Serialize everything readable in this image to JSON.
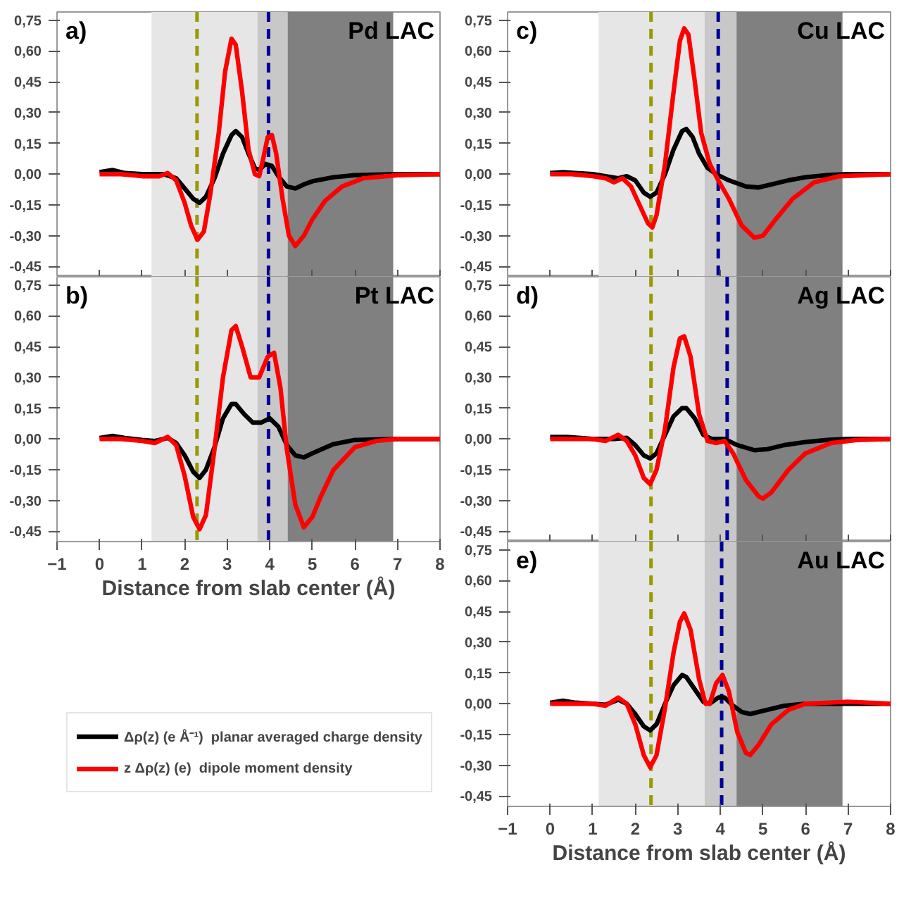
{
  "chart_data": [
    {
      "type": "line",
      "title": "Pd LAC",
      "annotations": [
        "a)"
      ],
      "xlim": [
        -1,
        8
      ],
      "ylim": [
        -0.5,
        0.79
      ],
      "tick_labels": "y",
      "grid": false,
      "xticks": [
        -1,
        0,
        1,
        2,
        3,
        4,
        5,
        6,
        7,
        8
      ],
      "yticks": [
        {
          "value": -0.45,
          "label": "-0,45"
        },
        {
          "value": -0.3,
          "label": "-0,30"
        },
        {
          "value": -0.15,
          "label": "-0,15"
        },
        {
          "value": 0,
          "label": "0,00"
        },
        {
          "value": 0.15,
          "label": "0,15"
        },
        {
          "value": 0.3,
          "label": "0,30"
        },
        {
          "value": 0.45,
          "label": "0,45"
        },
        {
          "value": 0.6,
          "label": "0,60"
        },
        {
          "value": 0.75,
          "label": "0,75"
        }
      ],
      "bands": [
        {
          "axis": "x",
          "from": 1.22,
          "to": 3.71,
          "color": "#e6e6e6"
        },
        {
          "axis": "x",
          "from": 3.71,
          "to": 4.42,
          "color": "#c8c8c8"
        },
        {
          "axis": "x",
          "from": 4.42,
          "to": 6.9,
          "color": "#808080"
        }
      ],
      "ref_lines": [
        {
          "axis": "x",
          "value": 2.29,
          "color": "#999900",
          "line_style": "dashed"
        },
        {
          "axis": "x",
          "value": 3.97,
          "color": "#000099",
          "line_style": "dashed"
        }
      ],
      "series": [
        {
          "color": "#000000",
          "x": [
            0,
            0.3,
            0.6,
            1.0,
            1.5,
            1.8,
            2.0,
            2.2,
            2.35,
            2.5,
            2.7,
            2.9,
            3.1,
            3.2,
            3.35,
            3.5,
            3.65,
            3.75,
            3.9,
            4.05,
            4.2,
            4.4,
            4.6,
            4.8,
            5.0,
            5.5,
            6.0,
            7.0,
            8.0
          ],
          "values": [
            0.01,
            0.02,
            0.005,
            0,
            0,
            -0.02,
            -0.07,
            -0.12,
            -0.14,
            -0.11,
            -0.02,
            0.1,
            0.19,
            0.21,
            0.18,
            0.1,
            0.03,
            0.02,
            0.05,
            0.04,
            -0.01,
            -0.06,
            -0.07,
            -0.05,
            -0.035,
            -0.015,
            -0.005,
            0,
            0
          ]
        },
        {
          "color": "#ff0000",
          "x": [
            0,
            0.5,
            1.0,
            1.4,
            1.6,
            1.8,
            2.0,
            2.15,
            2.3,
            2.45,
            2.6,
            2.8,
            2.95,
            3.1,
            3.2,
            3.35,
            3.5,
            3.65,
            3.75,
            3.85,
            3.95,
            4.05,
            4.15,
            4.3,
            4.45,
            4.6,
            4.8,
            5.0,
            5.3,
            5.7,
            6.2,
            7.0,
            8.0
          ],
          "values": [
            0,
            0,
            -0.01,
            -0.01,
            0.005,
            -0.03,
            -0.14,
            -0.25,
            -0.32,
            -0.28,
            -0.1,
            0.2,
            0.5,
            0.66,
            0.63,
            0.4,
            0.12,
            0,
            -0.01,
            0.08,
            0.18,
            0.19,
            0.1,
            -0.12,
            -0.3,
            -0.35,
            -0.3,
            -0.22,
            -0.13,
            -0.06,
            -0.02,
            -0.005,
            0
          ]
        }
      ]
    },
    {
      "type": "line",
      "title": "Pt LAC",
      "annotations": [
        "b)"
      ],
      "xlabel": "Distance from slab center (Å)",
      "xlim": [
        -1,
        8
      ],
      "ylim": [
        -0.5,
        0.79
      ],
      "grid": false,
      "legend": "bottom",
      "xticks": [
        -1,
        0,
        1,
        2,
        3,
        4,
        5,
        6,
        7,
        8
      ],
      "yticks": [
        {
          "value": -0.45,
          "label": "-0,45"
        },
        {
          "value": -0.3,
          "label": "-0,30"
        },
        {
          "value": -0.15,
          "label": "-0,15"
        },
        {
          "value": 0,
          "label": "0,00"
        },
        {
          "value": 0.15,
          "label": "0,15"
        },
        {
          "value": 0.3,
          "label": "0,30"
        },
        {
          "value": 0.45,
          "label": "0,45"
        },
        {
          "value": 0.6,
          "label": "0,60"
        },
        {
          "value": 0.75,
          "label": "0,75"
        }
      ],
      "bands": [
        {
          "axis": "x",
          "from": 1.22,
          "to": 3.71,
          "color": "#e6e6e6"
        },
        {
          "axis": "x",
          "from": 3.71,
          "to": 4.42,
          "color": "#c8c8c8"
        },
        {
          "axis": "x",
          "from": 4.42,
          "to": 6.9,
          "color": "#808080"
        }
      ],
      "ref_lines": [
        {
          "axis": "x",
          "value": 2.29,
          "color": "#999900",
          "line_style": "dashed"
        },
        {
          "axis": "x",
          "value": 3.97,
          "color": "#000099",
          "line_style": "dashed"
        }
      ],
      "series": [
        {
          "name": "Δρ(z) (e Å⁻¹)  planar averaged charge density",
          "color": "#000000",
          "x": [
            0,
            0.3,
            0.6,
            1.0,
            1.3,
            1.6,
            1.8,
            2.0,
            2.2,
            2.35,
            2.5,
            2.7,
            2.9,
            3.1,
            3.2,
            3.4,
            3.6,
            3.8,
            4.0,
            4.2,
            4.4,
            4.6,
            4.8,
            5.0,
            5.5,
            6.0,
            7.0,
            8.0
          ],
          "values": [
            0.005,
            0.015,
            0.005,
            -0.005,
            -0.01,
            0.005,
            -0.02,
            -0.08,
            -0.16,
            -0.19,
            -0.15,
            -0.04,
            0.1,
            0.17,
            0.17,
            0.12,
            0.08,
            0.08,
            0.1,
            0.06,
            -0.03,
            -0.08,
            -0.09,
            -0.07,
            -0.025,
            -0.005,
            0,
            0
          ]
        },
        {
          "name": "z Δρ(z) (e)  dipole moment density",
          "color": "#ff0000",
          "x": [
            0,
            0.5,
            1.0,
            1.3,
            1.6,
            1.8,
            2.0,
            2.2,
            2.35,
            2.5,
            2.7,
            2.9,
            3.1,
            3.2,
            3.35,
            3.55,
            3.75,
            3.95,
            4.1,
            4.25,
            4.4,
            4.6,
            4.8,
            5.0,
            5.2,
            5.5,
            6.0,
            6.5,
            7.0,
            8.0
          ],
          "values": [
            0,
            0,
            -0.01,
            -0.02,
            0.01,
            -0.03,
            -0.18,
            -0.38,
            -0.44,
            -0.37,
            -0.05,
            0.3,
            0.53,
            0.55,
            0.45,
            0.3,
            0.3,
            0.4,
            0.42,
            0.25,
            -0.05,
            -0.32,
            -0.43,
            -0.38,
            -0.28,
            -0.15,
            -0.04,
            -0.01,
            0,
            0
          ]
        }
      ]
    },
    {
      "type": "line",
      "title": "Cu LAC",
      "annotations": [
        "c)"
      ],
      "xlim": [
        -1,
        8
      ],
      "ylim": [
        -0.5,
        0.79
      ],
      "tick_labels": "y",
      "grid": false,
      "xticks": [
        -1,
        0,
        1,
        2,
        3,
        4,
        5,
        6,
        7,
        8
      ],
      "yticks": [
        {
          "value": -0.45,
          "label": "-0,45"
        },
        {
          "value": -0.3,
          "label": "-0,30"
        },
        {
          "value": -0.15,
          "label": "-0,15"
        },
        {
          "value": 0,
          "label": "0,00"
        },
        {
          "value": 0.15,
          "label": "0,15"
        },
        {
          "value": 0.3,
          "label": "0,30"
        },
        {
          "value": 0.45,
          "label": "0,45"
        },
        {
          "value": 0.6,
          "label": "0,60"
        },
        {
          "value": 0.75,
          "label": "0,75"
        }
      ],
      "bands": [
        {
          "axis": "x",
          "from": 1.14,
          "to": 3.63,
          "color": "#e6e6e6"
        },
        {
          "axis": "x",
          "from": 3.63,
          "to": 4.38,
          "color": "#c8c8c8"
        },
        {
          "axis": "x",
          "from": 4.38,
          "to": 6.87,
          "color": "#808080"
        }
      ],
      "ref_lines": [
        {
          "axis": "x",
          "value": 2.37,
          "color": "#999900",
          "line_style": "dashed"
        },
        {
          "axis": "x",
          "value": 3.95,
          "color": "#000099",
          "line_style": "dashed"
        }
      ],
      "series": [
        {
          "color": "#000000",
          "x": [
            0,
            0.3,
            0.6,
            1.0,
            1.3,
            1.6,
            1.8,
            2.0,
            2.2,
            2.35,
            2.5,
            2.7,
            2.9,
            3.1,
            3.2,
            3.35,
            3.5,
            3.7,
            3.9,
            4.2,
            4.6,
            4.9,
            5.2,
            5.6,
            6.0,
            6.5,
            7.0,
            8.0
          ],
          "values": [
            0.005,
            0.01,
            0.005,
            0,
            -0.01,
            -0.02,
            -0.01,
            -0.03,
            -0.09,
            -0.11,
            -0.09,
            0,
            0.12,
            0.21,
            0.22,
            0.18,
            0.1,
            0.03,
            0,
            -0.03,
            -0.06,
            -0.065,
            -0.05,
            -0.03,
            -0.015,
            -0.005,
            0,
            0
          ]
        },
        {
          "color": "#ff0000",
          "x": [
            0,
            0.5,
            1.0,
            1.3,
            1.5,
            1.7,
            1.9,
            2.1,
            2.3,
            2.4,
            2.5,
            2.7,
            2.9,
            3.05,
            3.15,
            3.25,
            3.4,
            3.55,
            3.75,
            3.95,
            4.2,
            4.5,
            4.8,
            5.0,
            5.3,
            5.7,
            6.2,
            6.8,
            8.0
          ],
          "values": [
            0,
            0,
            -0.01,
            -0.02,
            -0.04,
            -0.02,
            -0.06,
            -0.15,
            -0.24,
            -0.26,
            -0.2,
            0.05,
            0.4,
            0.65,
            0.71,
            0.68,
            0.45,
            0.2,
            0.05,
            -0.03,
            -0.12,
            -0.25,
            -0.31,
            -0.3,
            -0.22,
            -0.12,
            -0.04,
            -0.01,
            0
          ]
        }
      ]
    },
    {
      "type": "line",
      "title": "Ag LAC",
      "annotations": [
        "d)"
      ],
      "xlim": [
        -1,
        8
      ],
      "ylim": [
        -0.5,
        0.79
      ],
      "tick_labels": "y",
      "grid": false,
      "xticks": [
        -1,
        0,
        1,
        2,
        3,
        4,
        5,
        6,
        7,
        8
      ],
      "yticks": [
        {
          "value": -0.45,
          "label": "-0,45"
        },
        {
          "value": -0.3,
          "label": "-0,30"
        },
        {
          "value": -0.15,
          "label": "-0,15"
        },
        {
          "value": 0,
          "label": "0,00"
        },
        {
          "value": 0.15,
          "label": "0,15"
        },
        {
          "value": 0.3,
          "label": "0,30"
        },
        {
          "value": 0.45,
          "label": "0,45"
        },
        {
          "value": 0.6,
          "label": "0,60"
        },
        {
          "value": 0.75,
          "label": "0,75"
        }
      ],
      "bands": [
        {
          "axis": "x",
          "from": 1.14,
          "to": 3.63,
          "color": "#e6e6e6"
        },
        {
          "axis": "x",
          "from": 3.63,
          "to": 4.38,
          "color": "#c8c8c8"
        },
        {
          "axis": "x",
          "from": 4.38,
          "to": 6.87,
          "color": "#808080"
        }
      ],
      "ref_lines": [
        {
          "axis": "x",
          "value": 2.37,
          "color": "#999900",
          "line_style": "dashed"
        },
        {
          "axis": "x",
          "value": 4.16,
          "color": "#000099",
          "line_style": "dashed"
        }
      ],
      "series": [
        {
          "color": "#000000",
          "x": [
            0,
            0.4,
            1.0,
            1.5,
            1.8,
            2.0,
            2.2,
            2.35,
            2.5,
            2.7,
            2.9,
            3.1,
            3.2,
            3.4,
            3.6,
            3.8,
            4.1,
            4.4,
            4.8,
            5.1,
            5.5,
            6.0,
            6.5,
            7.0,
            8.0
          ],
          "values": [
            0.01,
            0.01,
            0,
            0,
            0.005,
            -0.03,
            -0.08,
            -0.095,
            -0.07,
            0.02,
            0.11,
            0.15,
            0.15,
            0.1,
            0.02,
            0,
            0,
            -0.03,
            -0.055,
            -0.05,
            -0.03,
            -0.015,
            -0.005,
            0,
            0
          ]
        },
        {
          "color": "#ff0000",
          "x": [
            0,
            1.0,
            1.3,
            1.6,
            1.8,
            2.0,
            2.2,
            2.35,
            2.5,
            2.7,
            2.9,
            3.05,
            3.15,
            3.3,
            3.5,
            3.7,
            3.9,
            4.1,
            4.3,
            4.6,
            4.9,
            5.0,
            5.2,
            5.6,
            6.0,
            6.6,
            7.2,
            8.0
          ],
          "values": [
            0,
            0,
            -0.01,
            0.02,
            -0.01,
            -0.08,
            -0.19,
            -0.22,
            -0.15,
            0.05,
            0.35,
            0.49,
            0.5,
            0.4,
            0.12,
            -0.01,
            -0.02,
            -0.01,
            -0.07,
            -0.2,
            -0.28,
            -0.29,
            -0.26,
            -0.15,
            -0.07,
            -0.02,
            -0.005,
            0
          ]
        }
      ]
    },
    {
      "type": "line",
      "title": "Au LAC",
      "annotations": [
        "e)"
      ],
      "xlabel": "Distance from slab center (Å)",
      "xlim": [
        -1,
        8
      ],
      "ylim": [
        -0.5,
        0.79
      ],
      "grid": false,
      "xticks": [
        -1,
        0,
        1,
        2,
        3,
        4,
        5,
        6,
        7,
        8
      ],
      "yticks": [
        {
          "value": -0.45,
          "label": "-0,45"
        },
        {
          "value": -0.3,
          "label": "-0,30"
        },
        {
          "value": -0.15,
          "label": "-0,15"
        },
        {
          "value": 0,
          "label": "0,00"
        },
        {
          "value": 0.15,
          "label": "0,15"
        },
        {
          "value": 0.3,
          "label": "0,30"
        },
        {
          "value": 0.45,
          "label": "0,45"
        },
        {
          "value": 0.6,
          "label": "0,60"
        },
        {
          "value": 0.75,
          "label": "0,75"
        }
      ],
      "bands": [
        {
          "axis": "x",
          "from": 1.14,
          "to": 3.63,
          "color": "#e6e6e6"
        },
        {
          "axis": "x",
          "from": 3.63,
          "to": 4.38,
          "color": "#c8c8c8"
        },
        {
          "axis": "x",
          "from": 4.38,
          "to": 6.87,
          "color": "#808080"
        }
      ],
      "ref_lines": [
        {
          "axis": "x",
          "value": 2.37,
          "color": "#999900",
          "line_style": "dashed"
        },
        {
          "axis": "x",
          "value": 4.03,
          "color": "#000099",
          "line_style": "dashed"
        }
      ],
      "series": [
        {
          "color": "#000000",
          "x": [
            0,
            0.3,
            0.6,
            1.0,
            1.3,
            1.6,
            1.8,
            2.0,
            2.2,
            2.35,
            2.5,
            2.7,
            2.9,
            3.1,
            3.2,
            3.4,
            3.6,
            3.75,
            3.95,
            4.1,
            4.3,
            4.5,
            4.7,
            5.0,
            5.5,
            6.0,
            8.0
          ],
          "values": [
            0.005,
            0.015,
            0.005,
            0,
            -0.005,
            0.02,
            0,
            -0.05,
            -0.11,
            -0.13,
            -0.1,
            0,
            0.09,
            0.14,
            0.13,
            0.07,
            0.01,
            0,
            0.03,
            0.03,
            -0.01,
            -0.04,
            -0.05,
            -0.035,
            -0.01,
            0,
            0
          ]
        },
        {
          "color": "#ff0000",
          "x": [
            0,
            1.0,
            1.3,
            1.6,
            1.8,
            2.0,
            2.2,
            2.35,
            2.5,
            2.7,
            2.9,
            3.05,
            3.15,
            3.3,
            3.5,
            3.65,
            3.75,
            3.9,
            4.05,
            4.2,
            4.4,
            4.6,
            4.7,
            4.9,
            5.2,
            5.6,
            6.0,
            7.0,
            8.0
          ],
          "values": [
            0,
            0,
            -0.01,
            0.03,
            0,
            -0.1,
            -0.25,
            -0.31,
            -0.25,
            -0.02,
            0.25,
            0.4,
            0.44,
            0.36,
            0.12,
            0,
            0,
            0.1,
            0.14,
            0.06,
            -0.14,
            -0.24,
            -0.25,
            -0.2,
            -0.1,
            -0.03,
            0,
            0.01,
            0
          ]
        }
      ]
    }
  ]
}
